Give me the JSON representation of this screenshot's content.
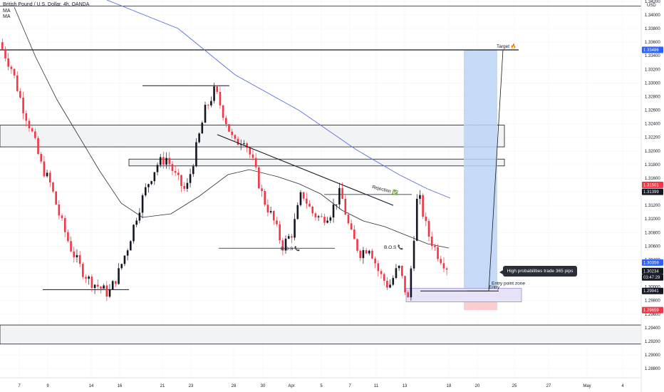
{
  "legend": {
    "title": "British Pound / U.S. Dollar, 4h, OANDA",
    "ind1": "MA",
    "ind2": "MA"
  },
  "price_axis": {
    "currency": "USD",
    "ticks": [
      "1.34200",
      "1.34000",
      "1.33800",
      "1.33600",
      "1.33400",
      "1.33200",
      "1.33000",
      "1.32800",
      "1.32600",
      "1.32400",
      "1.32200",
      "1.32000",
      "1.31800",
      "1.31600",
      "1.31400",
      "1.31200",
      "1.31000",
      "1.30800",
      "1.30600",
      "1.30400",
      "1.30200",
      "1.30000",
      "1.29800",
      "1.29600",
      "1.29400",
      "1.29200",
      "1.29000",
      "1.28800"
    ],
    "badges": [
      {
        "text": "1.33486",
        "value": 1.33486,
        "color": "#2962ff"
      },
      {
        "text": "1.31501",
        "value": 1.31501,
        "color": "#f23645"
      },
      {
        "text": "1.31399",
        "value": 1.31399,
        "color": "#131722"
      },
      {
        "text": "1.30359",
        "value": 1.30359,
        "color": "#2962ff"
      },
      {
        "text": "1.30234",
        "value": 1.30234,
        "color": "#131722"
      },
      {
        "text": "03:47:29",
        "value": 1.3014,
        "color": "#131722"
      },
      {
        "text": "1.29941",
        "value": 1.29941,
        "color": "#131722"
      },
      {
        "text": "1.29659",
        "value": 1.29659,
        "color": "#f23645"
      }
    ]
  },
  "time_axis": {
    "labels": [
      "7",
      "9",
      "14",
      "16",
      "21",
      "23",
      "28",
      "30",
      "Apr",
      "5",
      "7",
      "11",
      "13",
      "18",
      "20",
      "25",
      "27",
      "May",
      "4"
    ]
  },
  "annotations": {
    "target": "Target 🔥",
    "bos1": "B.O.S 📞",
    "bos2": "B.O.S 📞",
    "rejection": "Rejection ✅",
    "entry": "Entry",
    "entry_zone": "Entry point zone",
    "tooltip": "High probabilities trade 365 pips"
  },
  "colors": {
    "up": "#131722",
    "down": "#f23645",
    "ma_blue": "#5b6ee1",
    "ma_black": "#2a2e39",
    "target_zone": "#bbd3f5",
    "stop_zone": "#f9c9cc",
    "entry_zone": "#e7e2f5"
  },
  "chart_data": {
    "type": "candlestick",
    "title": "British Pound / U.S. Dollar, 4h, OANDA",
    "ylim": [
      1.287,
      1.343
    ],
    "x_labels": [
      "7",
      "9",
      "14",
      "16",
      "21",
      "23",
      "28",
      "30",
      "Apr",
      "5",
      "7",
      "11",
      "13",
      "18",
      "20",
      "25",
      "27",
      "May",
      "4"
    ],
    "closes_approx": [
      1.335,
      1.332,
      1.327,
      1.323,
      1.318,
      1.315,
      1.31,
      1.306,
      1.303,
      1.301,
      1.3,
      1.299,
      1.302,
      1.306,
      1.311,
      1.315,
      1.318,
      1.319,
      1.316,
      1.314,
      1.32,
      1.326,
      1.329,
      1.325,
      1.321,
      1.322,
      1.318,
      1.313,
      1.31,
      1.306,
      1.308,
      1.314,
      1.311,
      1.31,
      1.311,
      1.314,
      1.308,
      1.305,
      1.306,
      1.302,
      1.3,
      1.303,
      1.298,
      1.314,
      1.308,
      1.305,
      1.303
    ],
    "levels": {
      "target": 1.33486,
      "current": 1.30234,
      "entry": 1.29941,
      "stop": 1.29659,
      "resistance_high": 1.3296,
      "support_low": 1.2996
    },
    "zones": [
      {
        "name": "supply zone",
        "from": 1.3206,
        "to": 1.3238
      },
      {
        "name": "flip zone",
        "from": 1.3178,
        "to": 1.3188
      },
      {
        "name": "demand zone",
        "from": 1.2944,
        "to": 1.2916
      }
    ],
    "moving_averages": [
      "MA",
      "MA"
    ]
  }
}
